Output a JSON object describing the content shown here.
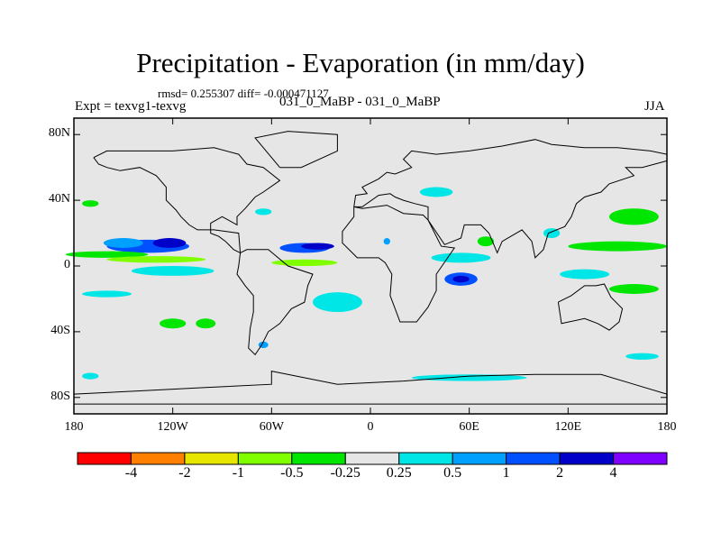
{
  "title": "Precipitation - Evaporation (in mm/day)",
  "stats": "rmsd= 0.255307 diff= -0.000471127",
  "expt": "Expt = texvg1-texvg",
  "cases": "031_0_MaBP - 031_0_MaBP",
  "season": "JJA",
  "chart_data": {
    "type": "heatmap",
    "projection": "cylindrical-equidistant",
    "title": "Precipitation - Evaporation (in mm/day)",
    "subtitle": "031_0_MaBP - 031_0_MaBP",
    "xlim": [
      -180,
      180
    ],
    "ylim": [
      -90,
      90
    ],
    "x_ticks": [
      {
        "value": -180,
        "label": "180"
      },
      {
        "value": -120,
        "label": "120W"
      },
      {
        "value": -60,
        "label": "60W"
      },
      {
        "value": 0,
        "label": "0"
      },
      {
        "value": 60,
        "label": "60E"
      },
      {
        "value": 120,
        "label": "120E"
      },
      {
        "value": 180,
        "label": "180"
      }
    ],
    "y_ticks": [
      {
        "value": 80,
        "label": "80N"
      },
      {
        "value": 40,
        "label": "40N"
      },
      {
        "value": 0,
        "label": "0"
      },
      {
        "value": -40,
        "label": "40S"
      },
      {
        "value": -80,
        "label": "80S"
      }
    ],
    "colorbar": {
      "levels": [
        "-4",
        "-2",
        "-1",
        "-0.5",
        "-0.25",
        "0.25",
        "0.5",
        "1",
        "2",
        "4"
      ],
      "colors": [
        "#ff0000",
        "#ff8000",
        "#e6e600",
        "#80ff00",
        "#00e600",
        "#e6e6e6",
        "#00e6e6",
        "#00a0ff",
        "#0050ff",
        "#0000c8",
        "#8000ff"
      ]
    },
    "anomaly_regions": [
      {
        "lon": -135,
        "lat": 12,
        "dlon": 25,
        "dlat": 4,
        "bin": 8
      },
      {
        "lon": -150,
        "lat": 14,
        "dlon": 12,
        "dlat": 3,
        "bin": 7
      },
      {
        "lon": -122,
        "lat": 14,
        "dlon": 10,
        "dlat": 3,
        "bin": 9
      },
      {
        "lon": -40,
        "lat": 11,
        "dlon": 15,
        "dlat": 3,
        "bin": 8
      },
      {
        "lon": -32,
        "lat": 12,
        "dlon": 10,
        "dlat": 2,
        "bin": 9
      },
      {
        "lon": -160,
        "lat": 7,
        "dlon": 25,
        "dlat": 2,
        "bin": 4
      },
      {
        "lon": -130,
        "lat": 4,
        "dlon": 30,
        "dlat": 2,
        "bin": 3
      },
      {
        "lon": -40,
        "lat": 2,
        "dlon": 20,
        "dlat": 2,
        "bin": 3
      },
      {
        "lon": -120,
        "lat": -3,
        "dlon": 25,
        "dlat": 3,
        "bin": 6
      },
      {
        "lon": -160,
        "lat": -17,
        "dlon": 15,
        "dlat": 2,
        "bin": 6
      },
      {
        "lon": -120,
        "lat": -35,
        "dlon": 8,
        "dlat": 3,
        "bin": 4
      },
      {
        "lon": -100,
        "lat": -35,
        "dlon": 6,
        "dlat": 3,
        "bin": 4
      },
      {
        "lon": -65,
        "lat": 33,
        "dlon": 5,
        "dlat": 2,
        "bin": 6
      },
      {
        "lon": -20,
        "lat": -22,
        "dlon": 15,
        "dlat": 6,
        "bin": 6
      },
      {
        "lon": -65,
        "lat": -48,
        "dlon": 3,
        "dlat": 2,
        "bin": 7
      },
      {
        "lon": 55,
        "lat": -8,
        "dlon": 10,
        "dlat": 4,
        "bin": 8
      },
      {
        "lon": 55,
        "lat": -8,
        "dlon": 5,
        "dlat": 2,
        "bin": 9
      },
      {
        "lon": 55,
        "lat": 5,
        "dlon": 18,
        "dlat": 3,
        "bin": 6
      },
      {
        "lon": 10,
        "lat": 15,
        "dlon": 2,
        "dlat": 2,
        "bin": 7
      },
      {
        "lon": 60,
        "lat": -68,
        "dlon": 35,
        "dlat": 2,
        "bin": 6
      },
      {
        "lon": -170,
        "lat": -67,
        "dlon": 5,
        "dlat": 2,
        "bin": 6
      },
      {
        "lon": 40,
        "lat": 45,
        "dlon": 10,
        "dlat": 3,
        "bin": 6
      },
      {
        "lon": 160,
        "lat": 30,
        "dlon": 15,
        "dlat": 5,
        "bin": 4
      },
      {
        "lon": 150,
        "lat": 12,
        "dlon": 30,
        "dlat": 3,
        "bin": 4
      },
      {
        "lon": 160,
        "lat": -14,
        "dlon": 15,
        "dlat": 3,
        "bin": 4
      },
      {
        "lon": 130,
        "lat": -5,
        "dlon": 15,
        "dlat": 3,
        "bin": 6
      },
      {
        "lon": 165,
        "lat": -55,
        "dlon": 10,
        "dlat": 2,
        "bin": 6
      },
      {
        "lon": 110,
        "lat": 20,
        "dlon": 5,
        "dlat": 3,
        "bin": 6
      },
      {
        "lon": 70,
        "lat": 15,
        "dlon": 5,
        "dlat": 3,
        "bin": 4
      },
      {
        "lon": -170,
        "lat": 38,
        "dlon": 5,
        "dlat": 2,
        "bin": 4
      }
    ]
  }
}
